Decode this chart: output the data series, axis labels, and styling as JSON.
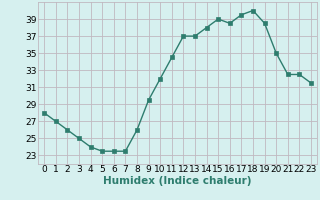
{
  "x": [
    0,
    1,
    2,
    3,
    4,
    5,
    6,
    7,
    8,
    9,
    10,
    11,
    12,
    13,
    14,
    15,
    16,
    17,
    18,
    19,
    20,
    21,
    22,
    23
  ],
  "y": [
    28,
    27,
    26,
    25,
    24,
    23.5,
    23.5,
    23.5,
    26,
    29.5,
    32,
    34.5,
    37,
    37,
    38,
    39,
    38.5,
    39.5,
    40,
    38.5,
    35,
    32.5,
    32.5,
    31.5
  ],
  "line_color": "#2e7d6e",
  "marker_color": "#2e7d6e",
  "bg_color": "#d6f0ef",
  "grid_color": "#c0b8c0",
  "xlabel": "Humidex (Indice chaleur)",
  "xlim": [
    -0.5,
    23.5
  ],
  "ylim": [
    22,
    41
  ],
  "yticks": [
    23,
    25,
    27,
    29,
    31,
    33,
    35,
    37,
    39
  ],
  "xticks": [
    0,
    1,
    2,
    3,
    4,
    5,
    6,
    7,
    8,
    9,
    10,
    11,
    12,
    13,
    14,
    15,
    16,
    17,
    18,
    19,
    20,
    21,
    22,
    23
  ],
  "xlabel_fontsize": 7.5,
  "tick_fontsize": 6.5
}
